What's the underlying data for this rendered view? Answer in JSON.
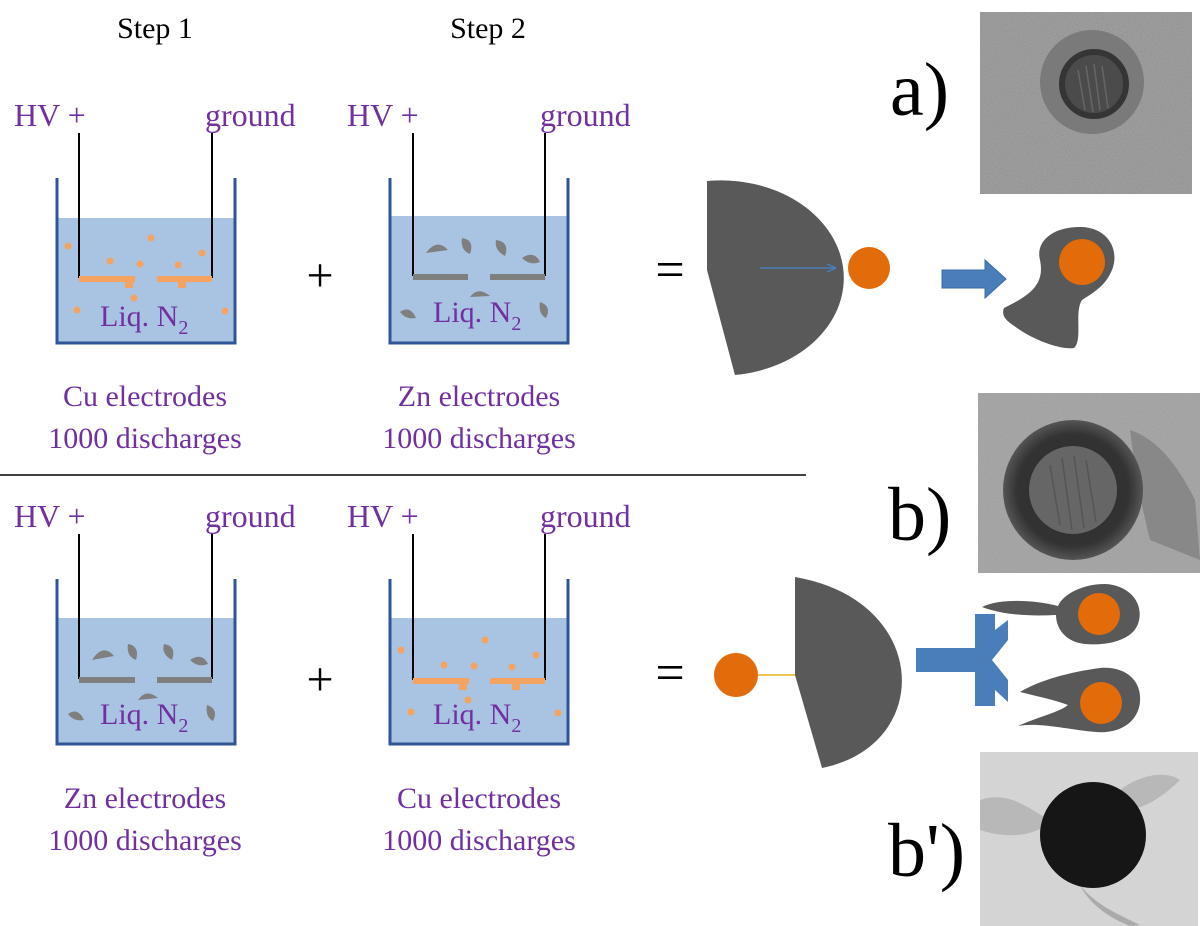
{
  "steps": {
    "step1": "Step 1",
    "step2": "Step 2"
  },
  "labels": {
    "hv": "HV +",
    "ground": "ground",
    "liquid": "Liq. N",
    "liquid_sub": "2",
    "plus": "+",
    "equals": "="
  },
  "rows": [
    {
      "step1": {
        "line1": "Cu electrodes",
        "line2": "1000 discharges"
      },
      "step2": {
        "line1": "Zn electrodes",
        "line2": "1000 discharges"
      }
    },
    {
      "step1": {
        "line1": "Zn electrodes",
        "line2": "1000 discharges"
      },
      "step2": {
        "line1": "Cu electrodes",
        "line2": "1000 discharges"
      }
    }
  ],
  "panels": {
    "a": "a)",
    "b": "b)",
    "b_prime": "b')"
  },
  "colors": {
    "text_purple": "#7030a0",
    "liquid": "#a9c3e2",
    "container": "#2f5597",
    "cu_orange": "#ed7d31",
    "cu_dark_orange": "#e26b0a",
    "zn_gray": "#595959",
    "arrow_blue": "#4a7ebb",
    "arrow_yellow": "#e8b420"
  }
}
